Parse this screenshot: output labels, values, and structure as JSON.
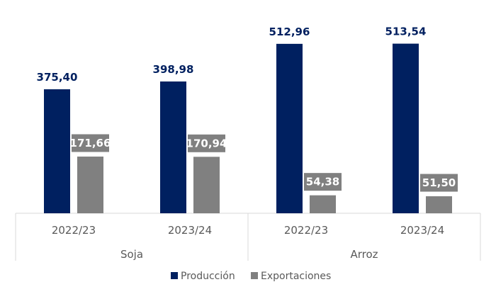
{
  "chart_data": {
    "type": "bar",
    "title": "",
    "xlabel": "",
    "ylabel": "",
    "ylim": [
      0,
      550
    ],
    "grid": false,
    "groups": [
      {
        "label": "Soja",
        "categories": [
          "2022/23",
          "2023/24"
        ]
      },
      {
        "label": "Arroz",
        "categories": [
          "2022/23",
          "2023/24"
        ]
      }
    ],
    "categories": [
      "2022/23",
      "2023/24",
      "2022/23",
      "2023/24"
    ],
    "series": [
      {
        "name": "Producción",
        "color": "#002060",
        "values": [
          375.4,
          398.98,
          512.96,
          513.54
        ],
        "labels": [
          "375,40",
          "398,98",
          "512,96",
          "513,54"
        ]
      },
      {
        "name": "Exportaciones",
        "color": "#808080",
        "values": [
          171.66,
          170.94,
          54.38,
          51.5
        ],
        "labels": [
          "171,66",
          "170,94",
          "54,38",
          "51,50"
        ]
      }
    ],
    "legend_position": "bottom"
  }
}
